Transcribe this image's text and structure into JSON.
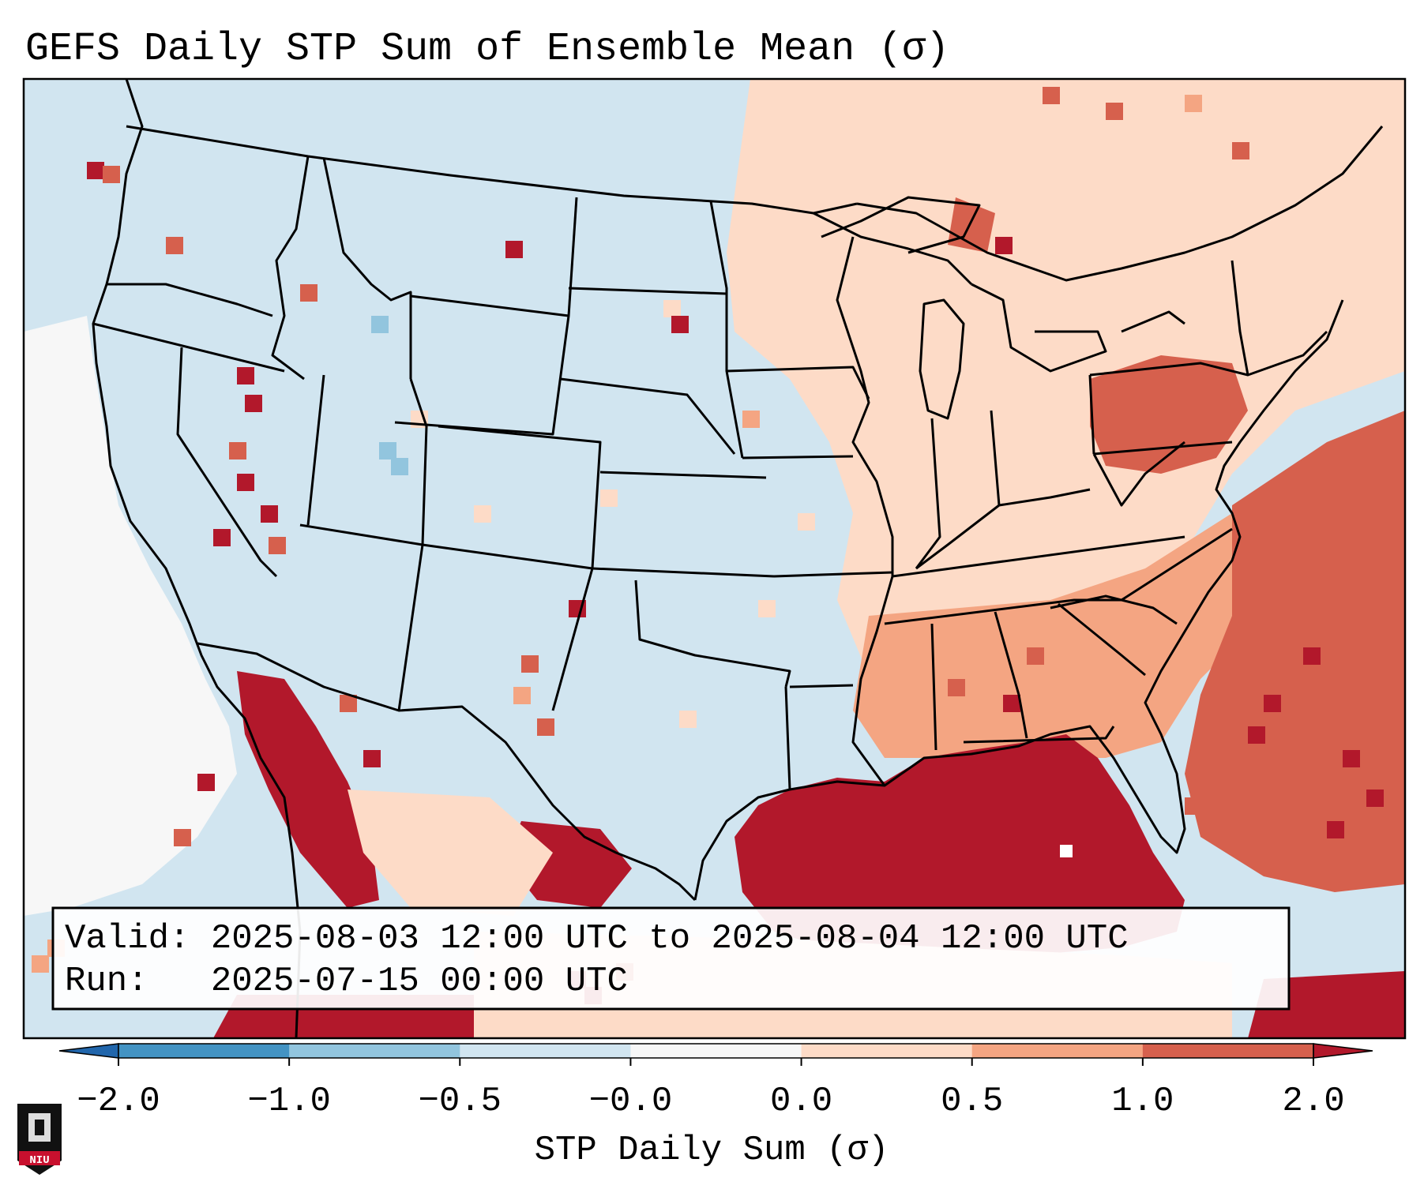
{
  "chart_data": {
    "type": "heatmap",
    "title": "GEFS Daily STP Sum of Ensemble Mean (σ)",
    "map_region": "CONUS",
    "info_box": {
      "valid_line": "Valid: 2025-08-03 12:00 UTC to 2025-08-04 12:00 UTC",
      "run_line": "Run:   2025-07-15 00:00 UTC"
    },
    "colorbar": {
      "label": "STP Daily Sum (σ)",
      "tick_labels": [
        "−2.0",
        "−1.0",
        "−0.5",
        "−0.0",
        "0.0",
        "0.5",
        "1.0",
        "2.0"
      ],
      "bins": [
        {
          "range": "< −2.0",
          "color": "#2166ac"
        },
        {
          "range": "−2.0 to −1.0",
          "color": "#4393c3"
        },
        {
          "range": "−1.0 to −0.5",
          "color": "#92c5de"
        },
        {
          "range": "−0.5 to −0.0",
          "color": "#d1e5f0"
        },
        {
          "range": "−0.0 to 0.0",
          "color": "#f7f7f7"
        },
        {
          "range": "0.0 to 0.5",
          "color": "#fddbc7"
        },
        {
          "range": "0.5 to 1.0",
          "color": "#f4a582"
        },
        {
          "range": "1.0 to 2.0",
          "color": "#d6604d"
        },
        {
          "range": "> 2.0",
          "color": "#b2182b"
        }
      ]
    },
    "regions": [
      {
        "name": "Western US interior",
        "category": "−0.5 to −0.0",
        "color": "#d1e5f0"
      },
      {
        "name": "Pacific coast offshore",
        "category": "−0.0 to 0.0",
        "color": "#f7f7f7"
      },
      {
        "name": "Upper Midwest / Great Lakes",
        "category": "0.0 to 0.5",
        "color": "#fddbc7"
      },
      {
        "name": "Mid-Atlantic / Pennsylvania",
        "category": "1.0 to 2.0",
        "color": "#d6604d"
      },
      {
        "name": "Southeast US",
        "category": "0.5 to 1.0",
        "color": "#f4a582"
      },
      {
        "name": "Western Atlantic",
        "category": "1.0 to 2.0",
        "color": "#d6604d"
      },
      {
        "name": "Gulf of Mexico",
        "category": "> 2.0",
        "color": "#b2182b"
      },
      {
        "name": "Northwest Mexico / Gulf of California",
        "category": "> 2.0",
        "color": "#b2182b"
      },
      {
        "name": "Caribbean / Cuba",
        "category": "0.0 to 0.5",
        "color": "#fddbc7"
      }
    ]
  },
  "logo": {
    "text": "NIU"
  }
}
